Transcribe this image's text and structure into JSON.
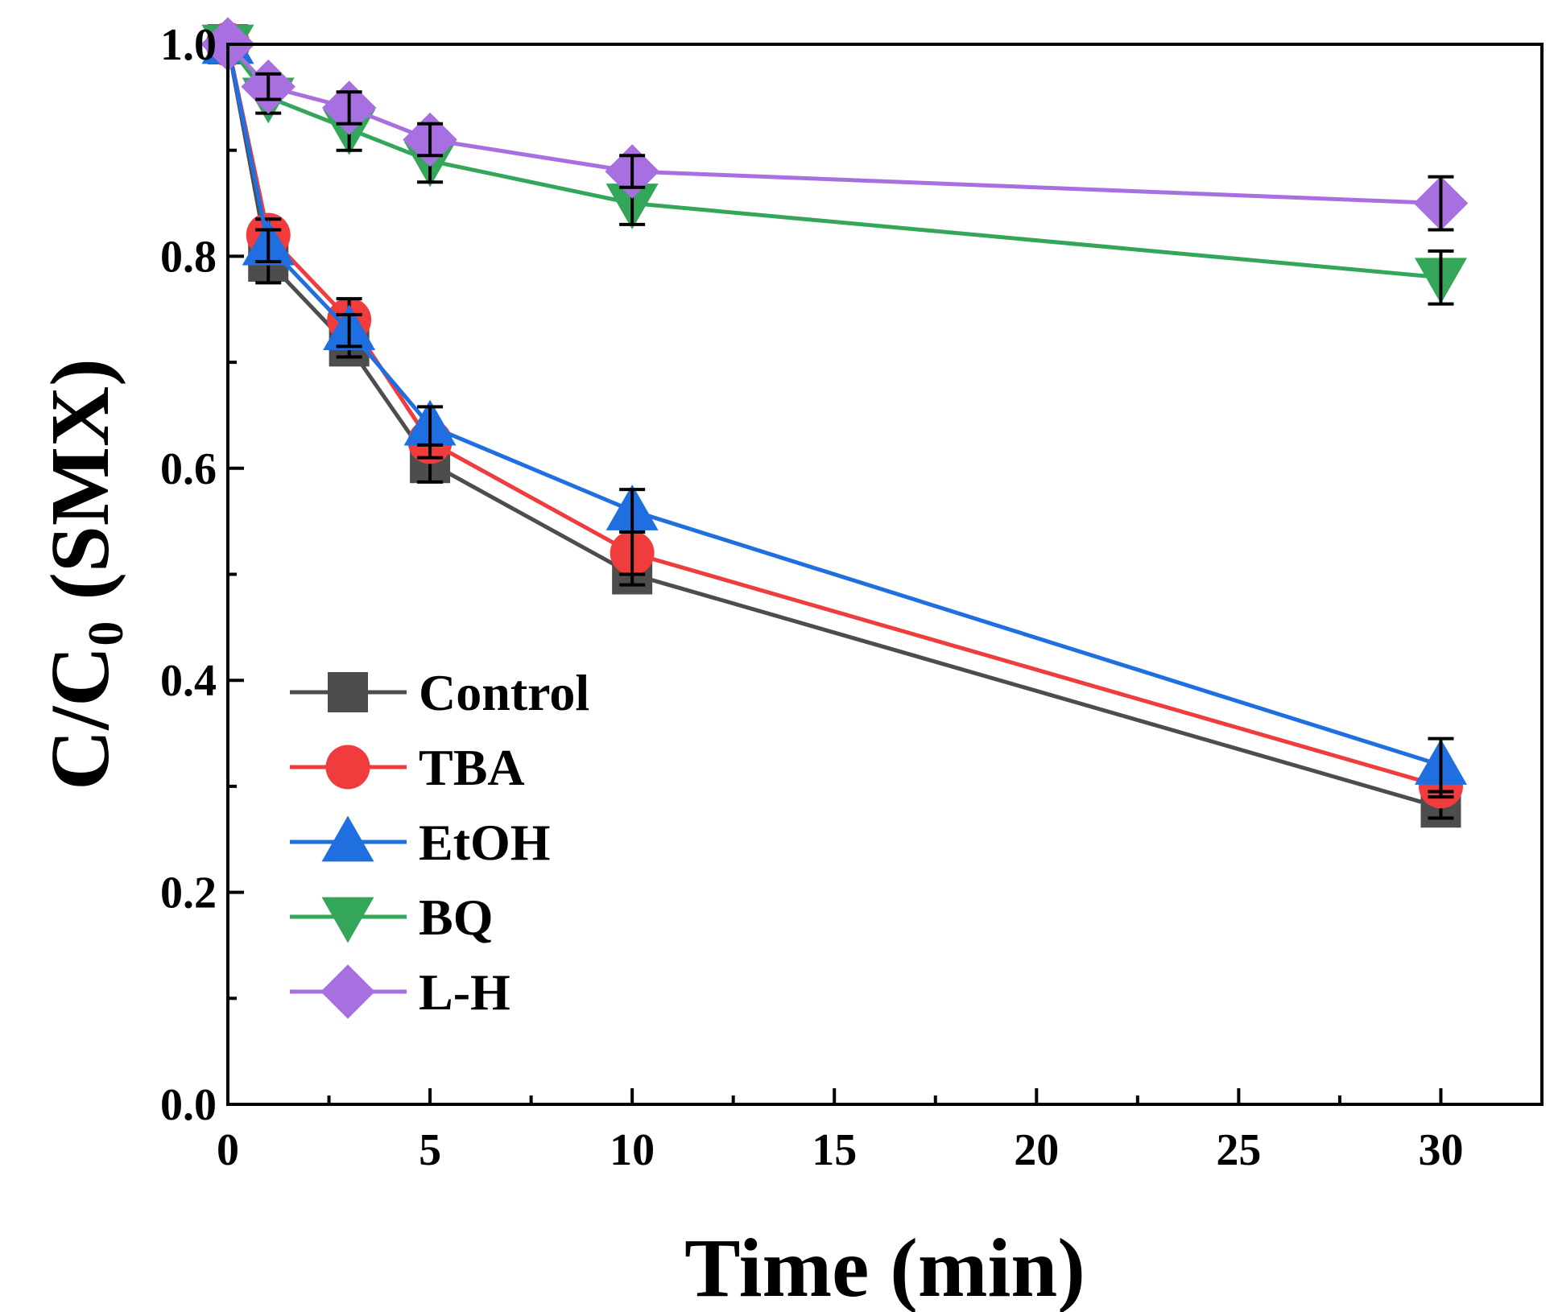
{
  "chart_data": {
    "type": "line",
    "xlabel": "Time (min)",
    "ylabel_main": "C/C",
    "ylabel_sub": "0",
    "ylabel_suffix": " (SMX)",
    "xlim": [
      0,
      32.5
    ],
    "ylim": [
      0,
      1.0
    ],
    "xticks": [
      0,
      5,
      10,
      15,
      20,
      25,
      30
    ],
    "xtick_labels": [
      "0",
      "5",
      "10",
      "15",
      "20",
      "25",
      "30"
    ],
    "yticks": [
      0,
      0.2,
      0.4,
      0.6,
      0.8,
      1.0
    ],
    "ytick_labels": [
      "0.0",
      "0.2",
      "0.4",
      "0.6",
      "0.8",
      "1.0"
    ],
    "x": [
      0,
      1,
      3,
      5,
      10,
      30
    ],
    "legend_position": "lower-left",
    "series": [
      {
        "name": "Control",
        "color": "#4d4d4d",
        "marker": "square",
        "values": [
          1.0,
          0.795,
          0.715,
          0.605,
          0.5,
          0.28
        ],
        "errors": [
          0,
          0.02,
          0.01,
          0.018,
          0.01,
          0.01
        ]
      },
      {
        "name": "TBA",
        "color": "#f03c3c",
        "marker": "circle",
        "values": [
          1.0,
          0.82,
          0.74,
          0.625,
          0.52,
          0.3
        ],
        "errors": [
          0,
          0.015,
          0.02,
          0.015,
          0.02,
          0.01
        ]
      },
      {
        "name": "EtOH",
        "color": "#1f6fe0",
        "marker": "triangle-up",
        "values": [
          1.0,
          0.81,
          0.73,
          0.64,
          0.56,
          0.32
        ],
        "errors": [
          0,
          0.015,
          0.015,
          0.018,
          0.02,
          0.025
        ]
      },
      {
        "name": "BQ",
        "color": "#33a65a",
        "marker": "triangle-down",
        "values": [
          1.0,
          0.95,
          0.92,
          0.89,
          0.85,
          0.78
        ],
        "errors": [
          0,
          0.015,
          0.02,
          0.02,
          0.02,
          0.025
        ]
      },
      {
        "name": "L-H",
        "color": "#a86fe0",
        "marker": "diamond",
        "values": [
          1.0,
          0.96,
          0.94,
          0.91,
          0.88,
          0.85
        ],
        "errors": [
          0,
          0.012,
          0.015,
          0.015,
          0.015,
          0.025
        ]
      }
    ]
  }
}
